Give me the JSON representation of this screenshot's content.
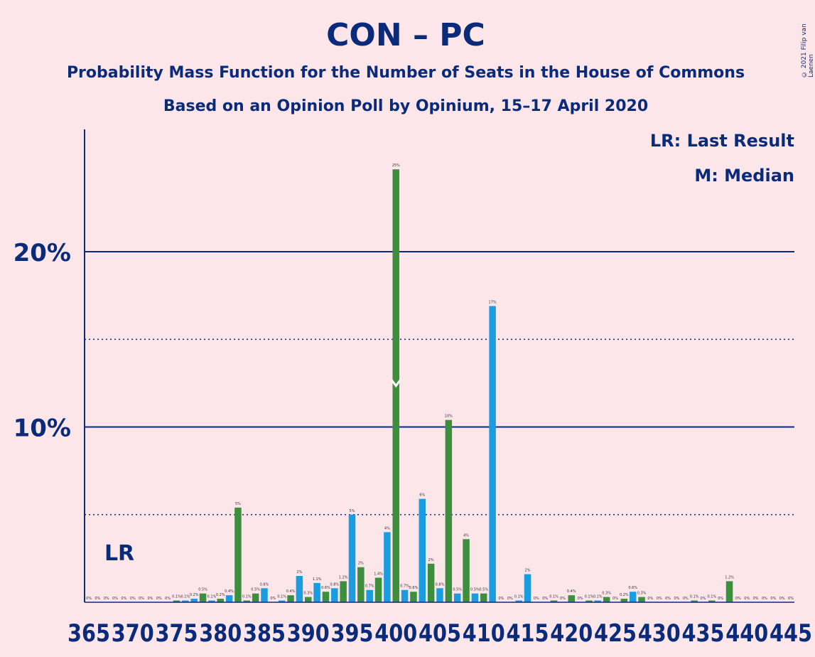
{
  "header": {
    "title": "CON – PC",
    "subtitle": "Probability Mass Function for the Number of Seats in the House of Commons",
    "subtitle2": "Based on an Opinion Poll by Opinium, 15–17 April 2020",
    "copyright": "© 2021 Filip van Laenen"
  },
  "legend": {
    "last_result": "LR: Last Result",
    "median": "M: Median"
  },
  "colors": {
    "green": "#3d8f3d",
    "blue": "#1b9be0",
    "axis": "#0a2b7a",
    "background": "#fde6ea"
  },
  "chart_data": {
    "type": "bar",
    "x_start": 365,
    "x_end": 445,
    "x_ticks": [
      365,
      370,
      375,
      380,
      385,
      390,
      395,
      400,
      405,
      410,
      415,
      420,
      425,
      430,
      435,
      440,
      445
    ],
    "x_tick_labels": [
      "365",
      "370",
      "375",
      "380",
      "385",
      "390",
      "395",
      "400",
      "405",
      "410",
      "415",
      "420",
      "425",
      "430",
      "435",
      "440",
      "445"
    ],
    "ylim": [
      0,
      27
    ],
    "y_ticks_major": [
      10,
      20
    ],
    "y_tick_labels": [
      "10%",
      "20%"
    ],
    "y_ticks_minor": [
      5,
      15
    ],
    "last_result_seat": 368,
    "last_result_label": "LR",
    "median_seat": 400,
    "seats": [
      365,
      366,
      367,
      368,
      369,
      370,
      371,
      372,
      373,
      374,
      375,
      376,
      377,
      378,
      379,
      380,
      381,
      382,
      383,
      384,
      385,
      386,
      387,
      388,
      389,
      390,
      391,
      392,
      393,
      394,
      395,
      396,
      397,
      398,
      399,
      400,
      401,
      402,
      403,
      404,
      405,
      406,
      407,
      408,
      409,
      410,
      411,
      412,
      413,
      414,
      415,
      416,
      417,
      418,
      419,
      420,
      421,
      422,
      423,
      424,
      425,
      426,
      427,
      428,
      429,
      430,
      431,
      432,
      433,
      434,
      435,
      436,
      437,
      438,
      439,
      440,
      441,
      442,
      443,
      444,
      445
    ],
    "values": [
      0,
      0,
      0,
      0,
      0,
      0,
      0,
      0,
      0,
      0,
      0.1,
      0.1,
      0.2,
      0.5,
      0.1,
      0.2,
      0.4,
      5.4,
      0.1,
      0.5,
      0.8,
      0,
      0.1,
      0.4,
      1.5,
      0.3,
      1.1,
      0.6,
      0.8,
      1.2,
      5,
      2,
      0.7,
      1.4,
      4,
      24.7,
      0.7,
      0.6,
      5.9,
      2.2,
      0.8,
      10.4,
      0.5,
      3.6,
      0.5,
      0.5,
      16.9,
      0,
      0,
      0.1,
      1.6,
      0,
      0,
      0.1,
      0,
      0.4,
      0,
      0.1,
      0.1,
      0.3,
      0,
      0.2,
      0.6,
      0.3,
      0,
      0,
      0,
      0,
      0,
      0.1,
      0,
      0.1,
      0,
      1.2,
      0,
      0,
      0,
      0,
      0,
      0,
      0
    ],
    "value_labels": [
      "0%",
      "0%",
      "0%",
      "0%",
      "0%",
      "0%",
      "0%",
      "0%",
      "0%",
      "0%",
      "0.1%",
      "0.1%",
      "0.2%",
      "0.5%",
      "0.1%",
      "0.2%",
      "0.4%",
      "5%",
      "0.1%",
      "0.5%",
      "0.8%",
      "0%",
      "0.1%",
      "0.4%",
      "2%",
      "0.3%",
      "1.1%",
      "0.6%",
      "0.8%",
      "1.2%",
      "5%",
      "2%",
      "0.7%",
      "1.4%",
      "4%",
      "25%",
      "0.7%",
      "0.6%",
      "6%",
      "2%",
      "0.8%",
      "10%",
      "0.5%",
      "4%",
      "0.5%",
      "0.5%",
      "17%",
      "0%",
      "0%",
      "0.1%",
      "2%",
      "0%",
      "0%",
      "0.1%",
      "0%",
      "0.4%",
      "0%",
      "0.1%",
      "0.1%",
      "0.3%",
      "0%",
      "0.2%",
      "0.6%",
      "0.3%",
      "0%",
      "0%",
      "0%",
      "0%",
      "0%",
      "0.1%",
      "0%",
      "0.1%",
      "0%",
      "1.2%",
      "0%",
      "0%",
      "0%",
      "0%",
      "0%",
      "0%",
      "0%"
    ],
    "bar_colors": [
      "green",
      "green",
      "green",
      "green",
      "green",
      "green",
      "green",
      "green",
      "green",
      "green",
      "green",
      "blue",
      "blue",
      "green",
      "blue",
      "green",
      "blue",
      "green",
      "green",
      "green",
      "blue",
      "green",
      "blue",
      "green",
      "blue",
      "green",
      "blue",
      "green",
      "blue",
      "green",
      "blue",
      "green",
      "blue",
      "green",
      "blue",
      "green",
      "blue",
      "green",
      "blue",
      "green",
      "blue",
      "green",
      "blue",
      "green",
      "blue",
      "green",
      "blue",
      "green",
      "blue",
      "blue",
      "blue",
      "green",
      "blue",
      "green",
      "blue",
      "green",
      "blue",
      "green",
      "blue",
      "green",
      "blue",
      "green",
      "blue",
      "green",
      "blue",
      "green",
      "blue",
      "green",
      "blue",
      "green",
      "blue",
      "green",
      "blue",
      "green",
      "blue",
      "green",
      "blue",
      "green",
      "blue",
      "green",
      "blue"
    ]
  }
}
